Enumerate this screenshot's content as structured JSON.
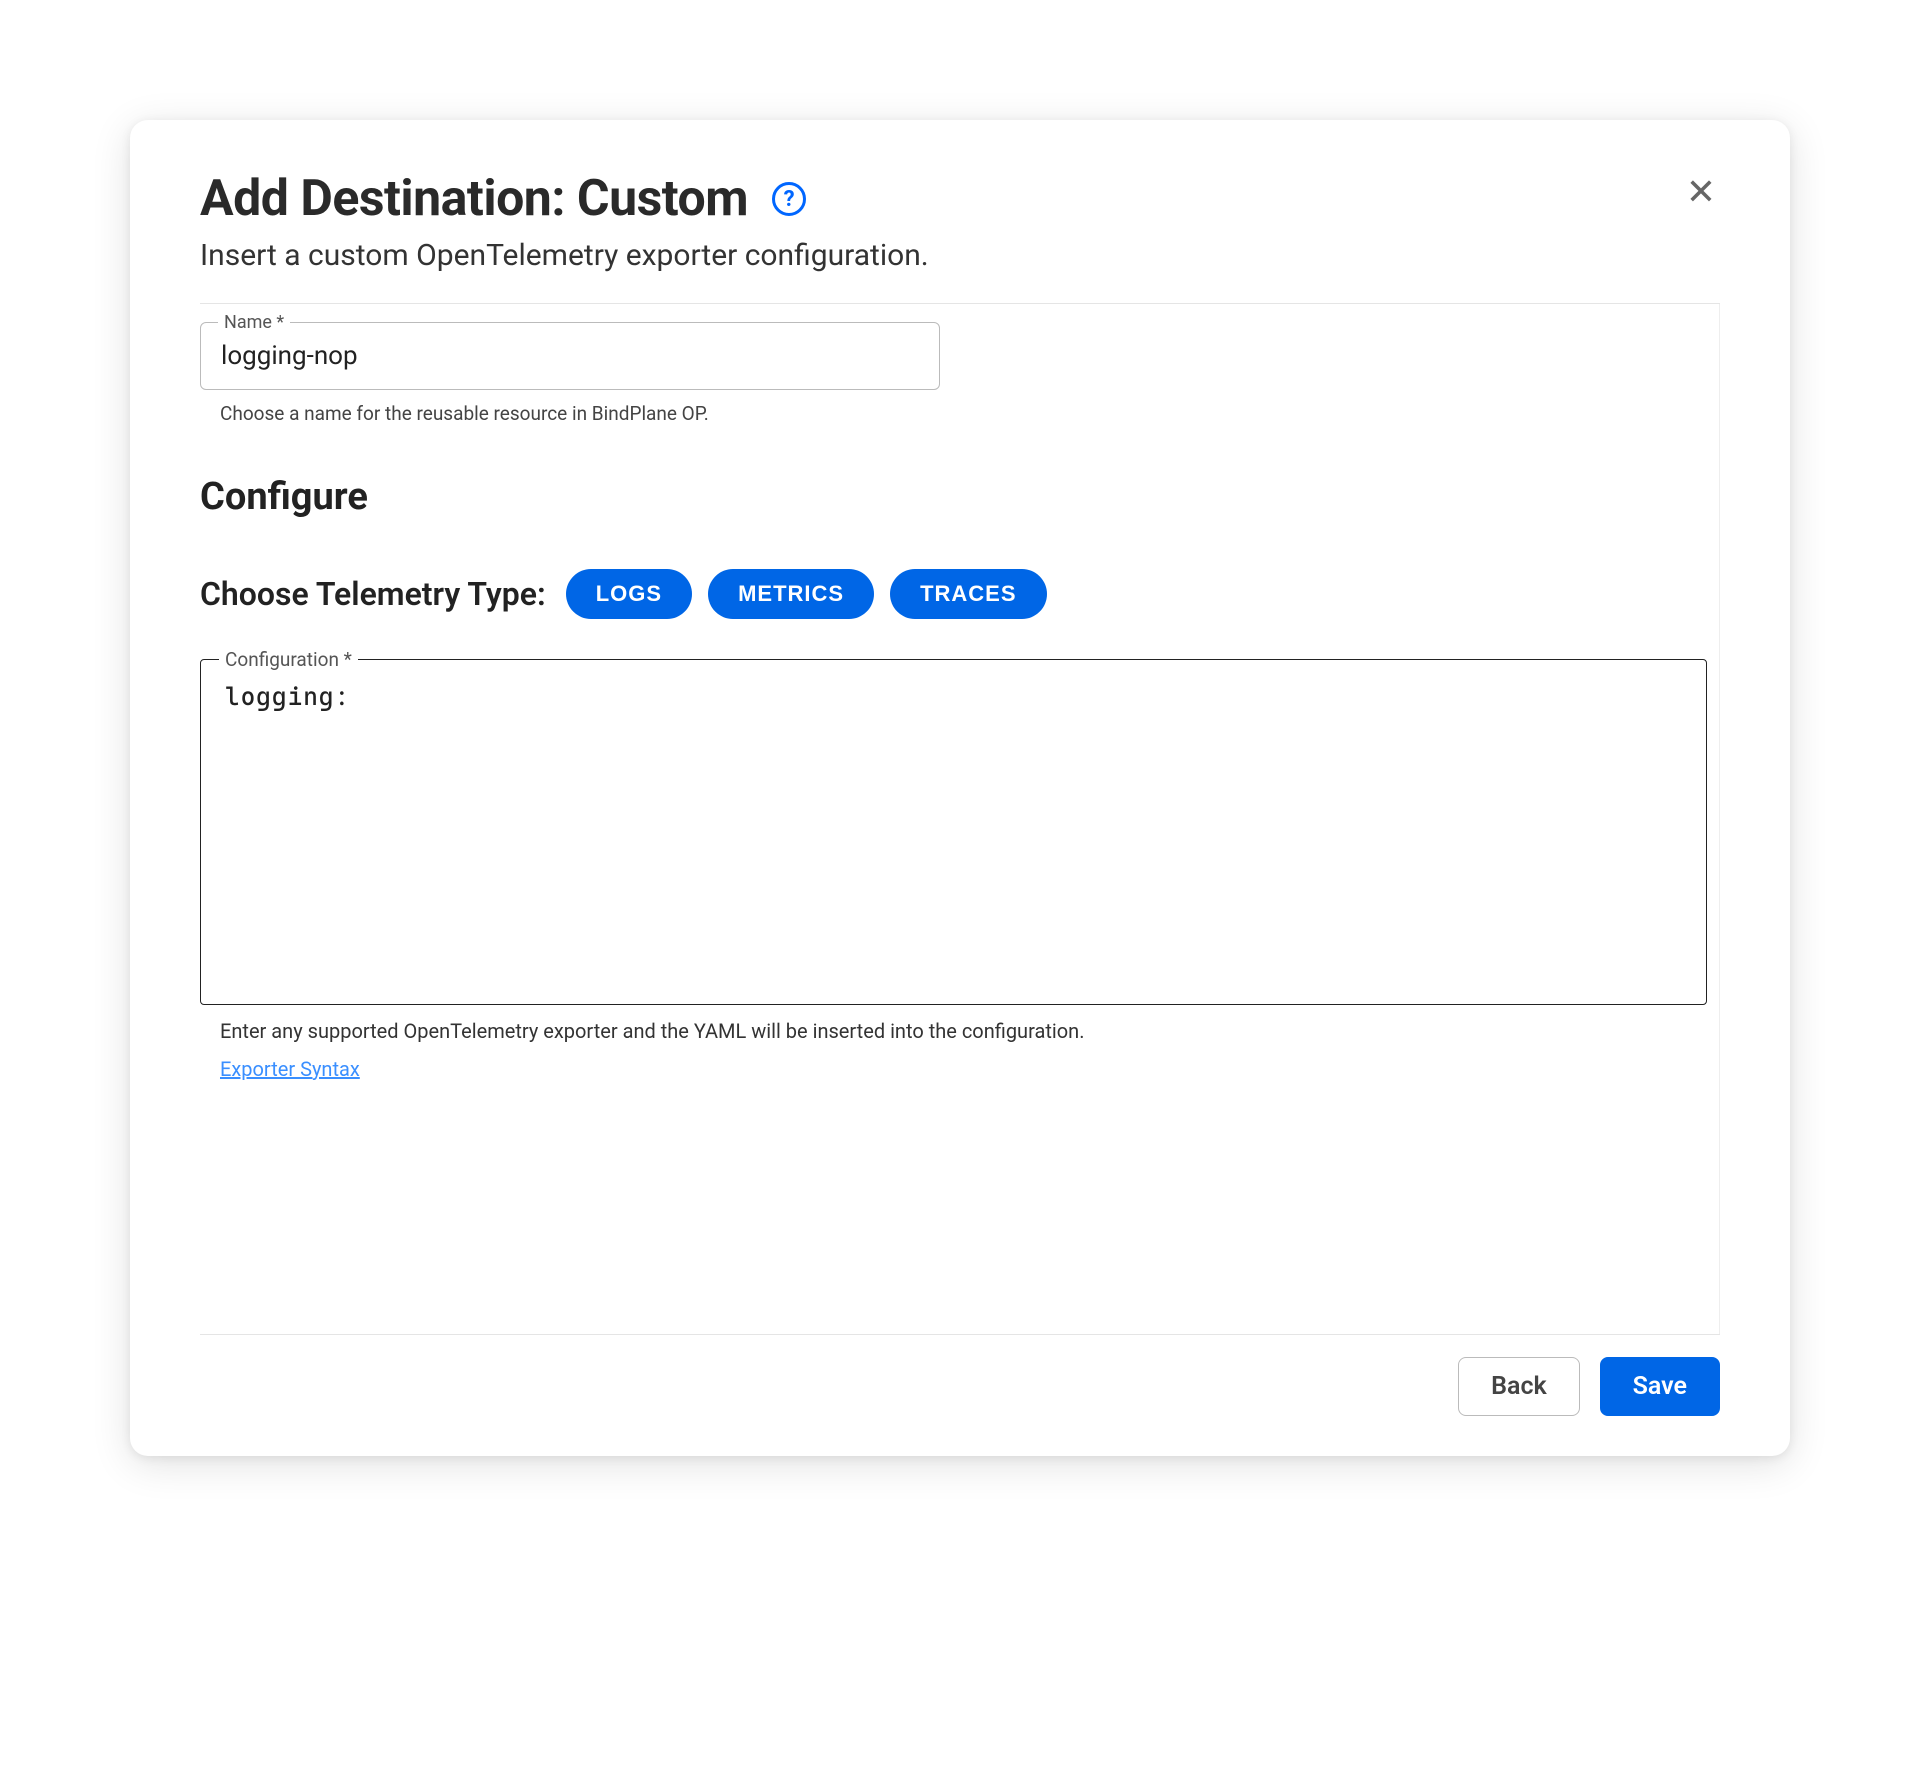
{
  "dialog": {
    "title": "Add Destination: Custom",
    "subtitle": "Insert a custom OpenTelemetry exporter configuration."
  },
  "nameField": {
    "label": "Name *",
    "value": "logging-nop",
    "helper": "Choose a name for the reusable resource in BindPlane OP."
  },
  "configureHeading": "Configure",
  "telemetry": {
    "label": "Choose Telemetry Type:",
    "options": [
      "LOGS",
      "METRICS",
      "TRACES"
    ]
  },
  "configField": {
    "label": "Configuration *",
    "value": "logging:",
    "helper": "Enter any supported OpenTelemetry exporter and the YAML will be inserted into the configuration.",
    "link": "Exporter Syntax"
  },
  "footer": {
    "back": "Back",
    "save": "Save"
  },
  "colors": {
    "primary": "#0066e6",
    "link": "#3a8fff",
    "border": "#e5e5e5",
    "text": "#222"
  }
}
